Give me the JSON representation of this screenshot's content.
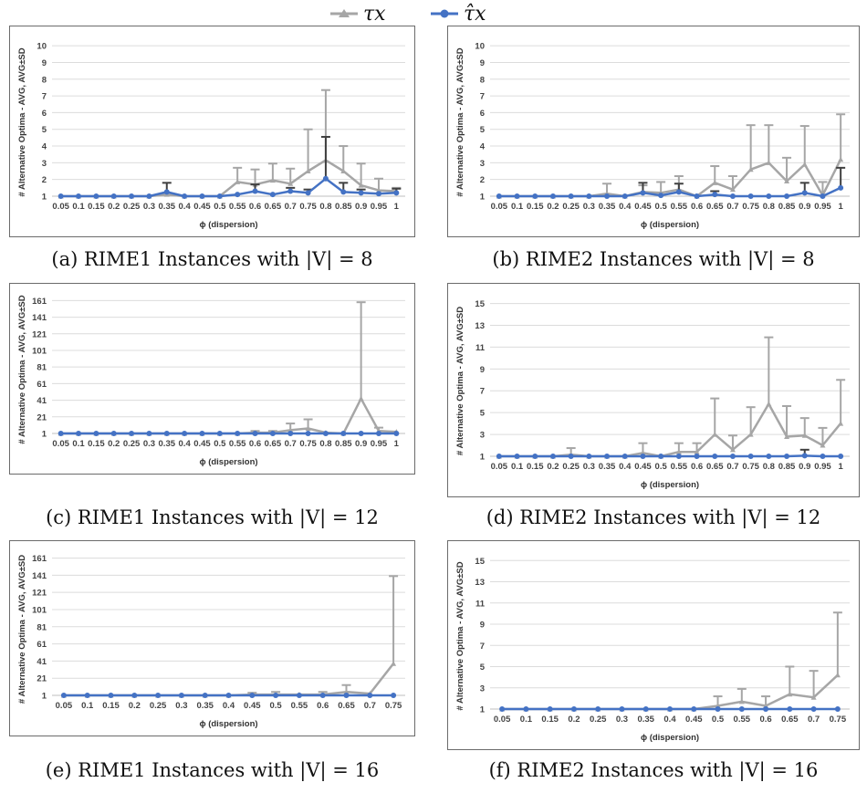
{
  "colors": {
    "tau": "#a6a6a6",
    "tauhat": "#4472c4",
    "tauhat_err": "#404040",
    "grid": "#dcdcdc"
  },
  "legend": [
    {
      "key": "tau",
      "label": "τx"
    },
    {
      "key": "tauhat",
      "label": "τ̂x"
    }
  ],
  "chart_data": [
    {
      "id": "a",
      "type": "line",
      "caption": "(a) RIME1 Instances with |V| = 8",
      "xlabel": "ϕ (dispersion)",
      "ylabel": "# Alternative Optima - AVG, AVG±SD",
      "categories": [
        "0.05",
        "0.1",
        "0.15",
        "0.2",
        "0.25",
        "0.3",
        "0.35",
        "0.4",
        "0.45",
        "0.5",
        "0.55",
        "0.6",
        "0.65",
        "0.7",
        "0.75",
        "0.8",
        "0.85",
        "0.9",
        "0.95",
        "1"
      ],
      "yticks": [
        1,
        2,
        3,
        4,
        5,
        6,
        7,
        8,
        9,
        10
      ],
      "ylim": [
        1,
        10.5
      ],
      "grid": true,
      "series": [
        {
          "name": "τx",
          "key": "tau",
          "values": [
            1,
            1,
            1,
            1,
            1,
            1,
            1.1,
            1,
            1,
            1,
            1.85,
            1.7,
            1.95,
            1.75,
            2.5,
            3.15,
            2.5,
            1.65,
            1.35,
            1.3
          ],
          "err": [
            0,
            0,
            0,
            0,
            0,
            0,
            0,
            0,
            0,
            0,
            0.85,
            0.9,
            1.0,
            0.9,
            2.5,
            4.2,
            1.5,
            1.3,
            0.7,
            0.2
          ]
        },
        {
          "name": "τ̂x",
          "key": "tauhat",
          "values": [
            1,
            1,
            1,
            1,
            1,
            1,
            1.25,
            1,
            1,
            1,
            1.1,
            1.3,
            1.1,
            1.3,
            1.2,
            2.05,
            1.25,
            1.2,
            1.15,
            1.2
          ],
          "err": [
            0,
            0,
            0,
            0,
            0,
            0,
            0.55,
            0,
            0,
            0,
            0,
            0.4,
            0,
            0.2,
            0.2,
            2.5,
            0.55,
            0.2,
            0,
            0.25
          ]
        }
      ]
    },
    {
      "id": "b",
      "type": "line",
      "caption": "(b) RIME2 Instances with |V| = 8",
      "xlabel": "ϕ (dispersion)",
      "ylabel": "# Alternative Optima - AVG, AVG±SD",
      "categories": [
        "0.05",
        "0.1",
        "0.15",
        "0.2",
        "0.25",
        "0.3",
        "0.35",
        "0.4",
        "0.45",
        "0.5",
        "0.55",
        "0.6",
        "0.65",
        "0.7",
        "0.75",
        "0.8",
        "0.85",
        "0.9",
        "0.95",
        "1"
      ],
      "yticks": [
        1,
        2,
        3,
        4,
        5,
        6,
        7,
        8,
        9,
        10
      ],
      "ylim": [
        1,
        10.5
      ],
      "grid": true,
      "series": [
        {
          "name": "τx",
          "key": "tau",
          "values": [
            1,
            1,
            1,
            1,
            1,
            1,
            1.15,
            1,
            1.25,
            1.2,
            1.4,
            1,
            1.8,
            1.4,
            2.6,
            3,
            1.9,
            2.9,
            1.05,
            3.2
          ],
          "err": [
            0,
            0,
            0,
            0,
            0,
            0,
            0.6,
            0,
            0.4,
            0.65,
            0.8,
            0,
            1.0,
            0.8,
            2.65,
            2.25,
            1.4,
            2.3,
            0.8,
            2.7
          ]
        },
        {
          "name": "τ̂x",
          "key": "tauhat",
          "values": [
            1,
            1,
            1,
            1,
            1,
            1,
            1,
            1,
            1.2,
            1.05,
            1.25,
            1,
            1.1,
            1,
            1,
            1,
            1,
            1.2,
            1,
            1.5
          ],
          "err": [
            0,
            0,
            0,
            0,
            0,
            0,
            0,
            0,
            0.6,
            0,
            0.5,
            0,
            0.2,
            0,
            0,
            0,
            0,
            0.6,
            0,
            1.2
          ]
        }
      ]
    },
    {
      "id": "c",
      "type": "line",
      "caption": "(c) RIME1 Instances with |V| = 12",
      "xlabel": "ϕ (dispersion)",
      "ylabel": "# Alternative Optima - AVG, AVG±SD",
      "categories": [
        "0.05",
        "0.1",
        "0.15",
        "0.2",
        "0.25",
        "0.3",
        "0.35",
        "0.4",
        "0.45",
        "0.5",
        "0.55",
        "0.6",
        "0.65",
        "0.7",
        "0.75",
        "0.8",
        "0.85",
        "0.9",
        "0.95",
        "1"
      ],
      "yticks": [
        1,
        21,
        41,
        61,
        81,
        101,
        121,
        141,
        161
      ],
      "ylim": [
        1,
        168
      ],
      "grid": true,
      "series": [
        {
          "name": "τx",
          "key": "tau",
          "values": [
            1,
            1,
            1,
            1,
            1,
            1,
            1,
            1,
            1,
            1,
            1,
            2,
            2,
            5,
            7,
            2,
            1,
            43,
            4,
            3
          ],
          "err": [
            0,
            0,
            0,
            0,
            0,
            0,
            0,
            0,
            0,
            0,
            0,
            2,
            2,
            8,
            11,
            0,
            0,
            116,
            4,
            0
          ]
        },
        {
          "name": "τ̂x",
          "key": "tauhat",
          "values": [
            1,
            1,
            1,
            1,
            1,
            1,
            1,
            1,
            1,
            1,
            1,
            1,
            1,
            1,
            1,
            1,
            1,
            1,
            1,
            1
          ],
          "err": [
            0,
            0,
            0,
            0,
            0,
            0,
            0,
            0,
            0,
            0,
            0,
            0,
            0,
            0,
            0,
            0,
            0,
            0,
            0,
            0
          ]
        }
      ]
    },
    {
      "id": "d",
      "type": "line",
      "caption": "(d) RIME2 Instances with |V| = 12",
      "xlabel": "ϕ (dispersion)",
      "ylabel": "# Alternative Optima - AVG, AVG±SD",
      "categories": [
        "0.05",
        "0.1",
        "0.15",
        "0.2",
        "0.25",
        "0.3",
        "0.35",
        "0.4",
        "0.45",
        "0.5",
        "0.55",
        "0.6",
        "0.65",
        "0.7",
        "0.75",
        "0.8",
        "0.85",
        "0.9",
        "0.95",
        "1"
      ],
      "yticks": [
        1,
        3,
        5,
        7,
        9,
        11,
        13,
        15
      ],
      "ylim": [
        1,
        15.8
      ],
      "grid": true,
      "series": [
        {
          "name": "τx",
          "key": "tau",
          "values": [
            1,
            1,
            1,
            1,
            1.15,
            1,
            1,
            1,
            1.3,
            1,
            1.4,
            1.4,
            3,
            1.6,
            3,
            5.8,
            2.8,
            2.9,
            2,
            4
          ],
          "err": [
            0,
            0,
            0,
            0,
            0.6,
            0,
            0,
            0,
            0.9,
            0,
            0.8,
            0.8,
            3.3,
            1.3,
            2.5,
            6.1,
            2.8,
            1.6,
            1.6,
            4
          ]
        },
        {
          "name": "τ̂x",
          "key": "tauhat",
          "values": [
            1,
            1,
            1,
            1,
            1,
            1,
            1,
            1,
            1,
            1,
            1,
            1,
            1,
            1,
            1,
            1,
            1,
            1.05,
            1,
            1
          ],
          "err": [
            0,
            0,
            0,
            0,
            0,
            0,
            0,
            0,
            0,
            0,
            0,
            0,
            0,
            0,
            0,
            0,
            0,
            0.55,
            0,
            0
          ]
        }
      ]
    },
    {
      "id": "e",
      "type": "line",
      "caption": "(e) RIME1 Instances with |V| = 16",
      "xlabel": "ϕ (dispersion)",
      "ylabel": "# Alternative Optima - AVG, AVG±SD",
      "categories": [
        "0.05",
        "0.1",
        "0.15",
        "0.2",
        "0.25",
        "0.3",
        "0.35",
        "0.4",
        "0.45",
        "0.5",
        "0.55",
        "0.6",
        "0.65",
        "0.7",
        "0.75"
      ],
      "yticks": [
        1,
        21,
        41,
        61,
        81,
        101,
        121,
        141,
        161
      ],
      "ylim": [
        1,
        168
      ],
      "grid": true,
      "series": [
        {
          "name": "τx",
          "key": "tau",
          "values": [
            1,
            1,
            1,
            1,
            1,
            1,
            1,
            1,
            2,
            2,
            2,
            2,
            5,
            3,
            38
          ],
          "err": [
            0,
            0,
            0,
            0,
            0,
            0,
            0,
            0,
            2,
            3,
            0,
            3,
            8,
            0,
            102
          ]
        },
        {
          "name": "τ̂x",
          "key": "tauhat",
          "values": [
            1,
            1,
            1,
            1,
            1,
            1,
            1,
            1,
            1,
            1,
            1,
            1,
            1,
            1,
            1
          ],
          "err": [
            0,
            0,
            0,
            0,
            0,
            0,
            0,
            0,
            0,
            0,
            0,
            0,
            0,
            0,
            0
          ]
        }
      ]
    },
    {
      "id": "f",
      "type": "line",
      "caption": "(f) RIME2 Instances with |V| = 16",
      "xlabel": "ϕ (dispersion)",
      "ylabel": "# Alternative Optima - AVG, AVG±SD",
      "categories": [
        "0.05",
        "0.1",
        "0.15",
        "0.2",
        "0.25",
        "0.3",
        "0.35",
        "0.4",
        "0.45",
        "0.5",
        "0.55",
        "0.6",
        "0.65",
        "0.7",
        "0.75"
      ],
      "yticks": [
        1,
        3,
        5,
        7,
        9,
        11,
        13,
        15
      ],
      "ylim": [
        1,
        15.8
      ],
      "grid": true,
      "series": [
        {
          "name": "τx",
          "key": "tau",
          "values": [
            1,
            1,
            1,
            1,
            1,
            1,
            1,
            1,
            1,
            1.3,
            1.7,
            1.3,
            2.4,
            2.1,
            4.2
          ],
          "err": [
            0,
            0,
            0,
            0,
            0,
            0,
            0,
            0,
            0,
            0.9,
            1.2,
            0.9,
            2.6,
            2.5,
            5.9
          ]
        },
        {
          "name": "τ̂x",
          "key": "tauhat",
          "values": [
            1,
            1,
            1,
            1,
            1,
            1,
            1,
            1,
            1,
            1,
            1,
            1,
            1,
            1,
            1
          ],
          "err": [
            0,
            0,
            0,
            0,
            0,
            0,
            0,
            0,
            0,
            0,
            0,
            0,
            0,
            0,
            0
          ]
        }
      ]
    }
  ]
}
